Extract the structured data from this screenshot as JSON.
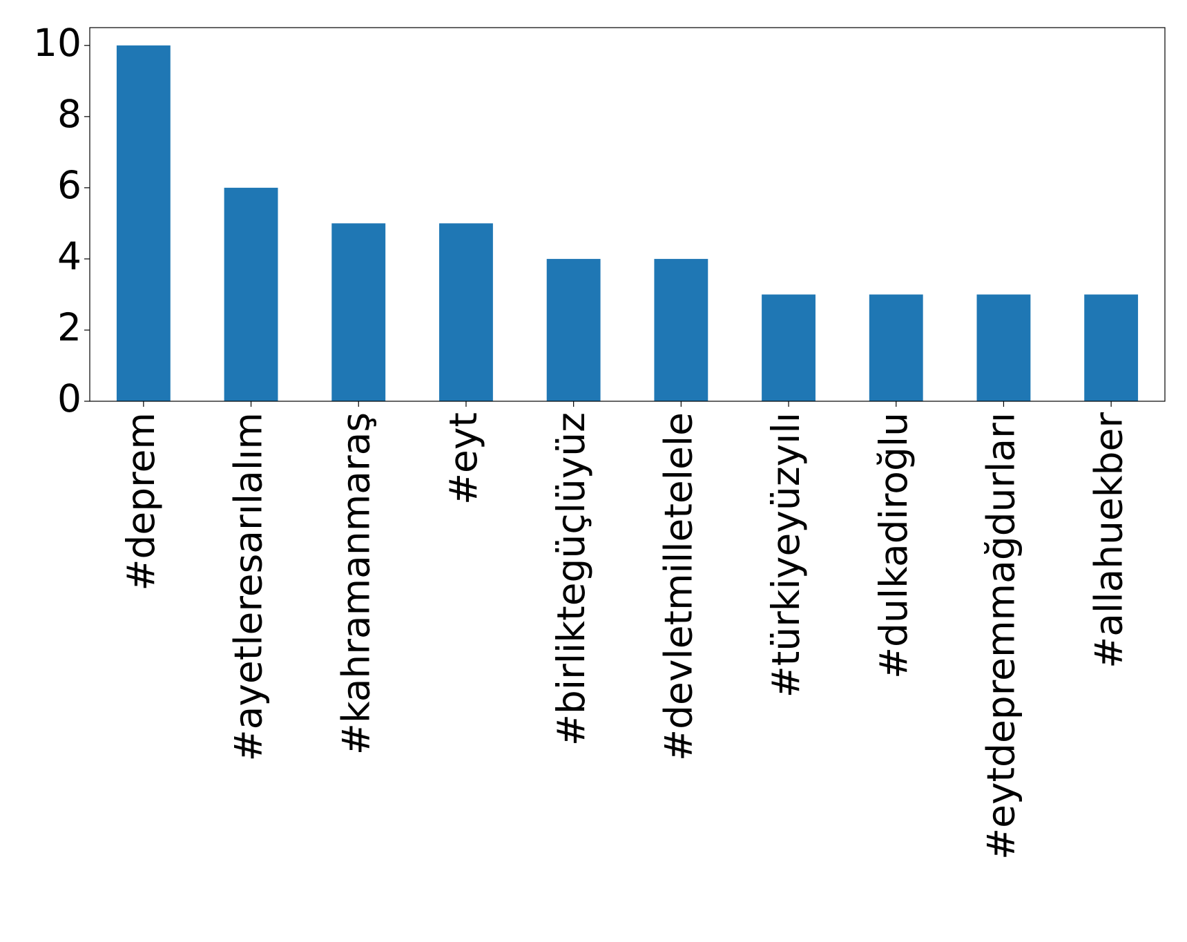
{
  "chart_data": {
    "type": "bar",
    "categories": [
      "#deprem",
      "#ayetleresarılalım",
      "#kahramanmaraş",
      "#eyt",
      "#birliktegüçlüyüz",
      "#devletmilletelele",
      "#türkiyeyüzyılı",
      "#dulkadiroğlu",
      "#eytdepremmağdurları",
      "#allahuekber"
    ],
    "values": [
      10,
      6,
      5,
      5,
      4,
      4,
      3,
      3,
      3,
      3
    ],
    "color": "#1f77b4",
    "ylim": [
      0,
      10.5
    ],
    "yticks": [
      0,
      2,
      4,
      6,
      8,
      10
    ],
    "grid": false
  }
}
